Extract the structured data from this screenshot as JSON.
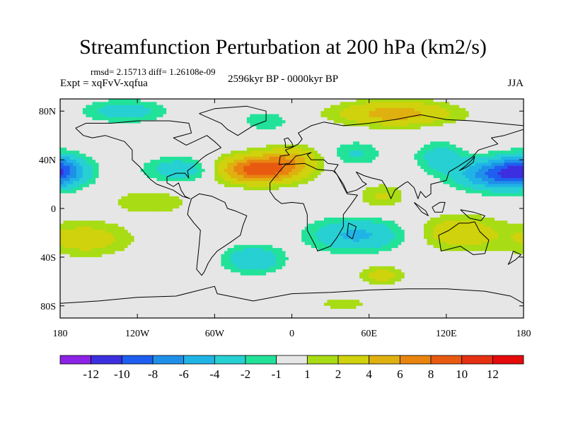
{
  "chart_data": {
    "type": "heatmap",
    "title": "Streamfunction Perturbation at 200 hPa (km2/s)",
    "stats_text": "rmsd= 2.15713  diff= 1.26108e-09",
    "experiment_text": "Expt = xqFvV-xqfua",
    "period_text": "2596kyr BP - 0000kyr BP",
    "season_text": "JJA",
    "xlim": [
      -180,
      180
    ],
    "ylim": [
      -90,
      90
    ],
    "x_ticks": [
      {
        "value": -180,
        "label": "180"
      },
      {
        "value": -120,
        "label": "120W"
      },
      {
        "value": -60,
        "label": "60W"
      },
      {
        "value": 0,
        "label": "0"
      },
      {
        "value": 60,
        "label": "60E"
      },
      {
        "value": 120,
        "label": "120E"
      },
      {
        "value": 180,
        "label": "180"
      }
    ],
    "y_ticks": [
      {
        "value": 80,
        "label": "80N"
      },
      {
        "value": 40,
        "label": "40N"
      },
      {
        "value": 0,
        "label": "0"
      },
      {
        "value": -40,
        "label": "40S"
      },
      {
        "value": -80,
        "label": "80S"
      }
    ],
    "colorbar": {
      "levels": [
        -12,
        -10,
        -8,
        -6,
        -4,
        -2,
        -1,
        1,
        2,
        4,
        6,
        8,
        10,
        12
      ],
      "labels": [
        "-12",
        "-10",
        "-8",
        "-6",
        "-4",
        "-2",
        "-1",
        "1",
        "2",
        "4",
        "6",
        "8",
        "10",
        "12"
      ],
      "colors": [
        "#8b22e6",
        "#3c2fe0",
        "#1e5ef0",
        "#1e90e8",
        "#20b4e6",
        "#27d0d2",
        "#22e29a",
        "#e6e6e6",
        "#a8dc14",
        "#cfd20c",
        "#e0b010",
        "#e88410",
        "#e85a10",
        "#e63012",
        "#e60a0a"
      ]
    },
    "anomalies": [
      {
        "name": "north atlantic high",
        "lon": -25,
        "lat": 32,
        "amplitude": 9.5,
        "lon_radius": 32,
        "lat_radius": 11
      },
      {
        "name": "atlantic ridge extension",
        "lon": 0,
        "lat": 42,
        "amplitude": 3,
        "lon_radius": 22,
        "lat_radius": 10
      },
      {
        "name": "central asia high",
        "lon": 80,
        "lat": 78,
        "amplitude": 5,
        "lon_radius": 45,
        "lat_radius": 10
      },
      {
        "name": "arctic low north america",
        "lon": -130,
        "lat": 80,
        "amplitude": -3,
        "lon_radius": 32,
        "lat_radius": 9
      },
      {
        "name": "west pacific low",
        "lon": 160,
        "lat": 28,
        "amplitude": -8,
        "lon_radius": 30,
        "lat_radius": 12
      },
      {
        "name": "dateline low north",
        "lon": -180,
        "lat": 32,
        "amplitude": -6,
        "lon_radius": 20,
        "lat_radius": 12
      },
      {
        "name": "east asia low",
        "lon": 115,
        "lat": 42,
        "amplitude": -3,
        "lon_radius": 18,
        "lat_radius": 12
      },
      {
        "name": "arabia low",
        "lon": 50,
        "lat": 45,
        "amplitude": -2.2,
        "lon_radius": 20,
        "lat_radius": 10
      },
      {
        "name": "caribbean low",
        "lon": -85,
        "lat": 32,
        "amplitude": -3.5,
        "lon_radius": 28,
        "lat_radius": 10
      },
      {
        "name": "europe low",
        "lon": -20,
        "lat": 72,
        "amplitude": -2,
        "lon_radius": 18,
        "lat_radius": 8
      },
      {
        "name": "south atlantic low",
        "lon": -30,
        "lat": -42,
        "amplitude": -4,
        "lon_radius": 22,
        "lat_radius": 11
      },
      {
        "name": "indian ocean low",
        "lon": 50,
        "lat": -22,
        "amplitude": -4.5,
        "lon_radius": 35,
        "lat_radius": 13
      },
      {
        "name": "south pacific high",
        "lon": -160,
        "lat": -25,
        "amplitude": 3,
        "lon_radius": 35,
        "lat_radius": 14
      },
      {
        "name": "south indian high",
        "lon": 70,
        "lat": -55,
        "amplitude": 3,
        "lon_radius": 18,
        "lat_radius": 7
      },
      {
        "name": "australia high",
        "lon": 130,
        "lat": -20,
        "amplitude": 3.5,
        "lon_radius": 30,
        "lat_radius": 14
      },
      {
        "name": "east pacific high",
        "lon": -110,
        "lat": 5,
        "amplitude": 2,
        "lon_radius": 30,
        "lat_radius": 10
      },
      {
        "name": "southern ocean high",
        "lon": 40,
        "lat": -78,
        "amplitude": 2,
        "lon_radius": 18,
        "lat_radius": 5
      },
      {
        "name": "arabian sea high",
        "lon": 70,
        "lat": 10,
        "amplitude": 2.2,
        "lon_radius": 18,
        "lat_radius": 10
      }
    ]
  }
}
